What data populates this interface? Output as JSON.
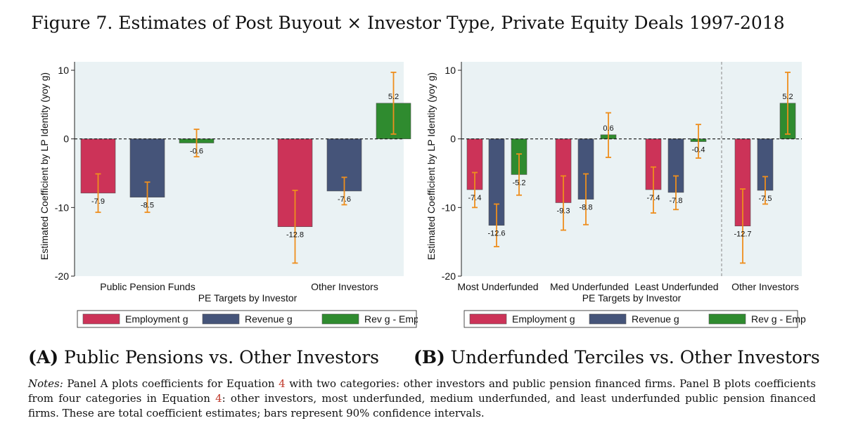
{
  "figure": {
    "title": "Figure 7. Estimates of Post Buyout × Investor Type, Private Equity Deals 1997-2018"
  },
  "colors": {
    "employment": "#cc3358",
    "revenue": "#455479",
    "revg_empg": "#2f8b2f",
    "ci": "#ee8e1d",
    "plot_bg": "#eaf2f4"
  },
  "chart_data": [
    {
      "type": "bar",
      "panel": "A",
      "xlabel": "PE Targets by Investor",
      "ylabel": "Estimated Coefficient by LP Identity (yoy g)",
      "ylim": [
        -20,
        10
      ],
      "yticks": [
        10,
        0,
        -10,
        -20
      ],
      "categories": [
        "Public Pension Funds",
        "Other Investors"
      ],
      "series": [
        {
          "name": "Employment g",
          "values": [
            -7.9,
            -12.8
          ],
          "labels": [
            "-7.9",
            "-12.8"
          ],
          "ci_low": [
            -10.7,
            -18.1
          ],
          "ci_high": [
            -5.1,
            -7.5
          ]
        },
        {
          "name": "Revenue g",
          "values": [
            -8.5,
            -7.6
          ],
          "labels": [
            "-8.5",
            "-7.6"
          ],
          "ci_low": [
            -10.7,
            -9.6
          ],
          "ci_high": [
            -6.3,
            -5.6
          ]
        },
        {
          "name": "Rev g - Emp g",
          "values": [
            -0.6,
            5.2
          ],
          "labels": [
            "-0.6",
            "5.2"
          ],
          "ci_low": [
            -2.6,
            0.7
          ],
          "ci_high": [
            1.4,
            9.7
          ]
        }
      ],
      "legend": [
        "Employment g",
        "Revenue g",
        "Rev g - Emp g"
      ],
      "caption_letter": "(A)",
      "caption_text": "Public Pensions vs. Other Investors"
    },
    {
      "type": "bar",
      "panel": "B",
      "xlabel": "PE Targets by Investor",
      "ylabel": "Estimated Coefficient by LP Identity (yoy g)",
      "ylim": [
        -20,
        10
      ],
      "yticks": [
        10,
        0,
        -10,
        -20
      ],
      "categories": [
        "Most Underfunded",
        "Med Underfunded",
        "Least Underfunded",
        "Other Investors"
      ],
      "series": [
        {
          "name": "Employment g",
          "values": [
            -7.4,
            -9.3,
            -7.4,
            -12.7
          ],
          "labels": [
            "-7.4",
            "-9.3",
            "-7.4",
            "-12.7"
          ],
          "ci_low": [
            -10.0,
            -13.3,
            -10.8,
            -18.1
          ],
          "ci_high": [
            -4.9,
            -5.4,
            -4.1,
            -7.3
          ]
        },
        {
          "name": "Revenue g",
          "values": [
            -12.6,
            -8.8,
            -7.8,
            -7.5
          ],
          "labels": [
            "-12.6",
            "-8.8",
            "-7.8",
            "-7.5"
          ],
          "ci_low": [
            -15.7,
            -12.5,
            -10.3,
            -9.5
          ],
          "ci_high": [
            -9.5,
            -5.1,
            -5.4,
            -5.5
          ]
        },
        {
          "name": "Rev g - Emp g",
          "values": [
            -5.2,
            0.6,
            -0.4,
            5.2
          ],
          "labels": [
            "-5.2",
            "0.6",
            "-0.4",
            "5.2"
          ],
          "ci_low": [
            -8.2,
            -2.7,
            -2.8,
            0.7
          ],
          "ci_high": [
            -2.2,
            3.8,
            2.1,
            9.7
          ]
        }
      ],
      "legend": [
        "Employment g",
        "Revenue g",
        "Rev g - Emp g"
      ],
      "caption_letter": "(B)",
      "caption_text": "Underfunded Terciles vs. Other Investors"
    }
  ],
  "notes": {
    "label": "Notes:",
    "part1": " Panel A plots coefficients for Equation ",
    "ref1": "4",
    "part2": " with two categories: other investors and public pension financed firms. Panel B plots coefficients from four categories in Equation ",
    "ref2": "4",
    "part3": ": other investors, most underfunded, medium underfunded, and least underfunded public pension financed firms. These are total coefficient estimates; bars represent 90% confidence intervals."
  }
}
